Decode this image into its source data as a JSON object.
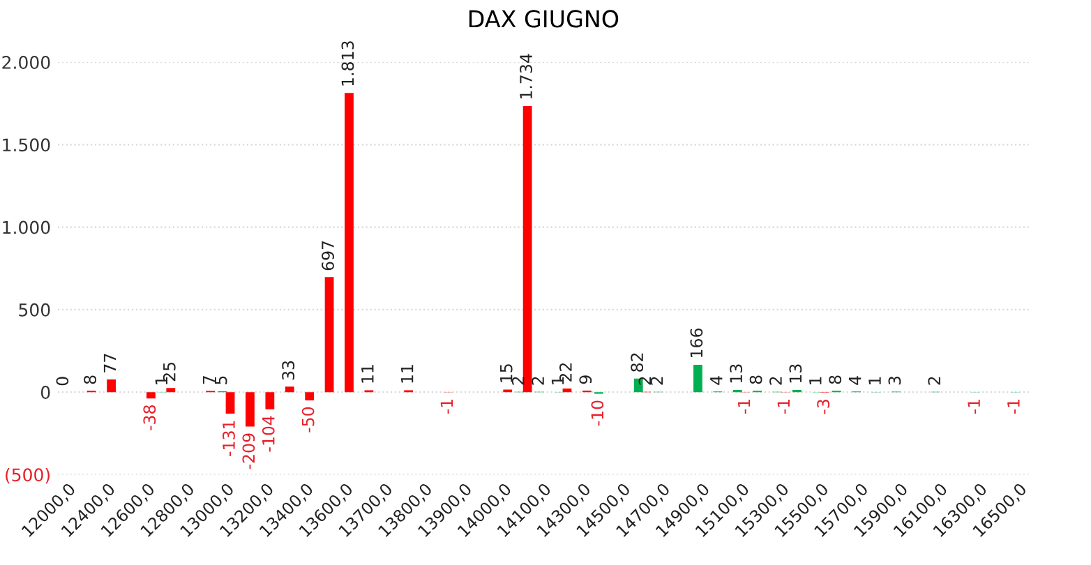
{
  "chart_data": {
    "type": "bar",
    "title": "DAX GIUGNO",
    "categories": [
      "12000,0",
      null,
      "12400,0",
      null,
      "12600,0",
      null,
      "12800,0",
      null,
      "13000,0",
      null,
      "13200,0",
      null,
      "13400,0",
      null,
      "13600,0",
      null,
      "13700,0",
      null,
      "13800,0",
      null,
      "13900,0",
      null,
      "14000,0",
      null,
      "14100,0",
      null,
      "14300,0",
      null,
      "14500,0",
      null,
      "14700,0",
      null,
      "14900,0",
      null,
      "15100,0",
      null,
      "15300,0",
      null,
      "15500,0",
      null,
      "15700,0",
      null,
      "15900,0",
      null,
      "16100,0",
      null,
      "16300,0",
      null,
      "16500,0"
    ],
    "series": [
      {
        "color": "#ff0000",
        "values": [
          null,
          8,
          77,
          null,
          -38,
          25,
          null,
          7,
          -131,
          -209,
          -104,
          33,
          -50,
          697,
          1813,
          11,
          null,
          11,
          null,
          -1,
          null,
          null,
          15,
          1734,
          null,
          22,
          9,
          null,
          null,
          2,
          null,
          null,
          null,
          null,
          -1,
          null,
          -1,
          null,
          -3,
          null,
          null,
          null,
          null,
          null,
          null,
          null,
          null,
          null,
          null
        ],
        "value_labels": [
          null,
          "8",
          "77",
          null,
          "-38",
          "25",
          null,
          "7",
          "-131",
          "-209",
          "-104",
          "33",
          "-50",
          "697",
          "1.813",
          "11",
          null,
          "11",
          null,
          "-1",
          null,
          null,
          "15",
          "1.734",
          null,
          "22",
          "9",
          null,
          null,
          "2",
          null,
          null,
          null,
          null,
          "-1",
          null,
          "-1",
          null,
          "-3",
          null,
          null,
          null,
          null,
          null,
          null,
          null,
          null,
          null,
          null
        ]
      },
      {
        "color": "#00b050",
        "values": [
          0,
          null,
          null,
          null,
          null,
          1,
          null,
          null,
          5,
          null,
          null,
          null,
          null,
          null,
          null,
          null,
          null,
          null,
          null,
          null,
          null,
          null,
          null,
          2,
          2,
          1,
          null,
          -10,
          null,
          82,
          2,
          null,
          166,
          4,
          13,
          8,
          2,
          13,
          1,
          8,
          4,
          1,
          3,
          null,
          2,
          null,
          -1,
          null,
          -1
        ],
        "value_labels": [
          "0",
          null,
          null,
          null,
          null,
          "1",
          null,
          null,
          "5",
          null,
          null,
          null,
          null,
          null,
          null,
          null,
          null,
          null,
          null,
          null,
          null,
          null,
          null,
          "2",
          "2",
          "1",
          null,
          "-10",
          null,
          "82",
          "2",
          null,
          "166",
          "4",
          "13",
          "8",
          "2",
          "13",
          "1",
          "8",
          "4",
          "1",
          "3",
          null,
          "2",
          null,
          "-1",
          null,
          "-1"
        ]
      }
    ],
    "ylim": [
      -500,
      2000
    ],
    "yticks": [
      {
        "value": -500,
        "label": "(500)"
      },
      0,
      500,
      {
        "value": 1000,
        "label": "1.000"
      },
      {
        "value": 1500,
        "label": "1.500"
      },
      {
        "value": 2000,
        "label": "2.000"
      }
    ],
    "grid": "y"
  }
}
